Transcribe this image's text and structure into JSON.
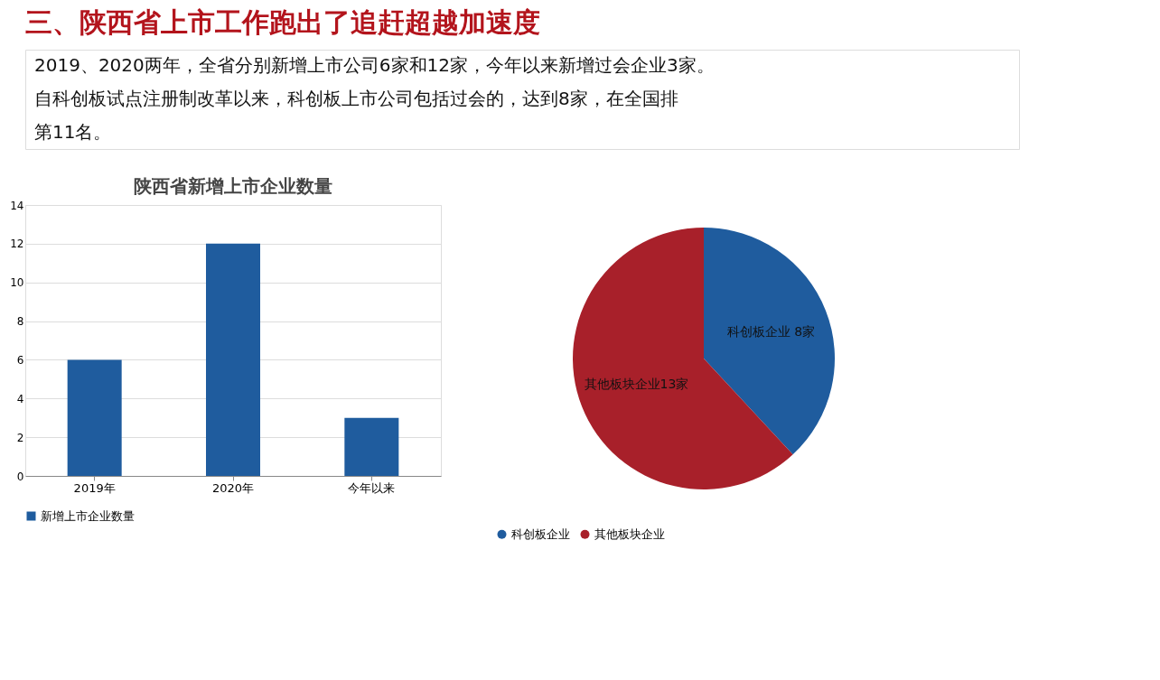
{
  "chart_data": [
    {
      "type": "other",
      "title": "三、陕西省上市工作跑出了追赶超越加速度",
      "annotations": [
        "2019、2020两年，全省分别新增上市公司6家和12家，今年以来新增过会企业3家。",
        "自科创板试点注册制改革以来，科创板上市公司包括过会的，达到8家，在全国排",
        "第11名。"
      ]
    },
    {
      "type": "bar",
      "title": "陕西省新增上市企业数量",
      "categories": [
        "2019年",
        "2020年",
        "今年以来"
      ],
      "series": [
        {
          "name": "新增上市企业数量",
          "color": "#1f5c9e",
          "values": [
            6,
            12,
            3
          ]
        }
      ],
      "ylim": [
        0,
        14
      ],
      "yticks": [
        0,
        2,
        4,
        6,
        8,
        10,
        12,
        14
      ],
      "grid": "y",
      "legend": "bottom"
    },
    {
      "type": "pie",
      "categories": [
        "科创板企业",
        "其他板块企业"
      ],
      "values": [
        8,
        13
      ],
      "colors": [
        "#1f5c9e",
        "#a8202a"
      ],
      "value_labels": [
        "科创板企业 8家",
        "其他板块企业13家"
      ],
      "legend": "bottom"
    }
  ]
}
